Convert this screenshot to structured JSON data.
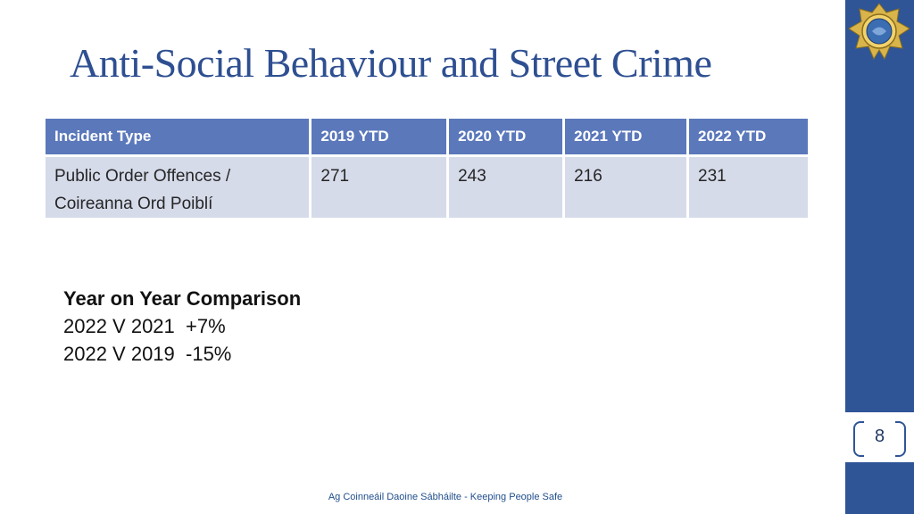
{
  "slide": {
    "title": "Anti-Social Behaviour and Street Crime",
    "page_number": "8",
    "footer": "Ag Coinneáil Daoine Sábháilte - Keeping People Safe"
  },
  "table": {
    "headers": [
      "Incident Type",
      "2019 YTD",
      "2020 YTD",
      "2021 YTD",
      "2022 YTD"
    ],
    "rows": [
      {
        "incident_type_line1": "Public Order Offences /",
        "incident_type_line2": "Coireanna Ord Poiblí",
        "values": [
          "271",
          "243",
          "216",
          "231"
        ]
      }
    ]
  },
  "comparison": {
    "heading": "Year on Year Comparison",
    "lines": [
      "2022 V 2021  +7%",
      "2022 V 2019  -15%"
    ]
  },
  "colors": {
    "sidebar": "#2f5597",
    "title": "#2e4f91",
    "table_header": "#5b78bb",
    "table_cell": "#d6dbea"
  }
}
